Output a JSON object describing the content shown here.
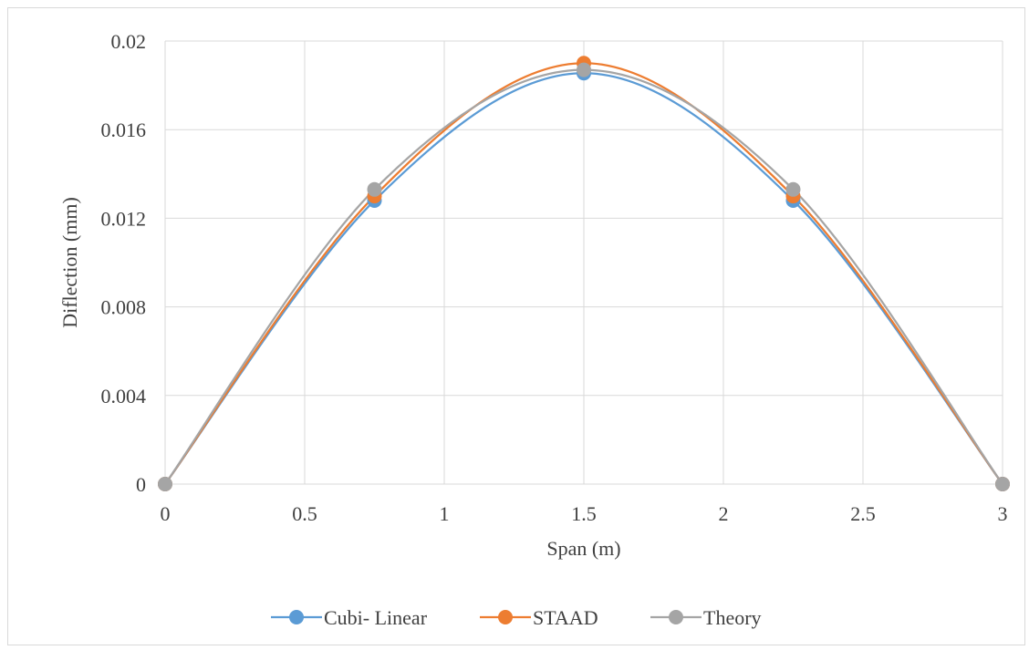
{
  "chart_data": {
    "type": "line",
    "smooth": true,
    "xlabel": "Span (m)",
    "ylabel": "Diflection (mm)",
    "xlim": [
      0,
      3
    ],
    "ylim": [
      0,
      0.02
    ],
    "xticks": [
      0,
      0.5,
      1,
      1.5,
      2,
      2.5,
      3
    ],
    "xtick_labels": [
      "0",
      "0.5",
      "1",
      "1.5",
      "2",
      "2.5",
      "3"
    ],
    "yticks": [
      0,
      0.004,
      0.008,
      0.012,
      0.016,
      0.02
    ],
    "ytick_labels": [
      "0",
      "0.004",
      "0.008",
      "0.012",
      "0.016",
      "0.02"
    ],
    "grid": true,
    "legend_position": "bottom",
    "series": [
      {
        "name": "Cubi- Linear",
        "color": "#5b9bd5",
        "x": [
          0,
          0.75,
          1.5,
          2.25,
          3
        ],
        "y": [
          0,
          0.0128,
          0.01855,
          0.0128,
          0
        ]
      },
      {
        "name": "STAAD",
        "color": "#ed7d31",
        "x": [
          0,
          0.75,
          1.5,
          2.25,
          3
        ],
        "y": [
          0,
          0.013,
          0.019,
          0.013,
          0
        ]
      },
      {
        "name": "Theory",
        "color": "#a5a5a5",
        "x": [
          0,
          0.75,
          1.5,
          2.25,
          3
        ],
        "y": [
          0,
          0.0133,
          0.0187,
          0.0133,
          0
        ]
      }
    ]
  }
}
